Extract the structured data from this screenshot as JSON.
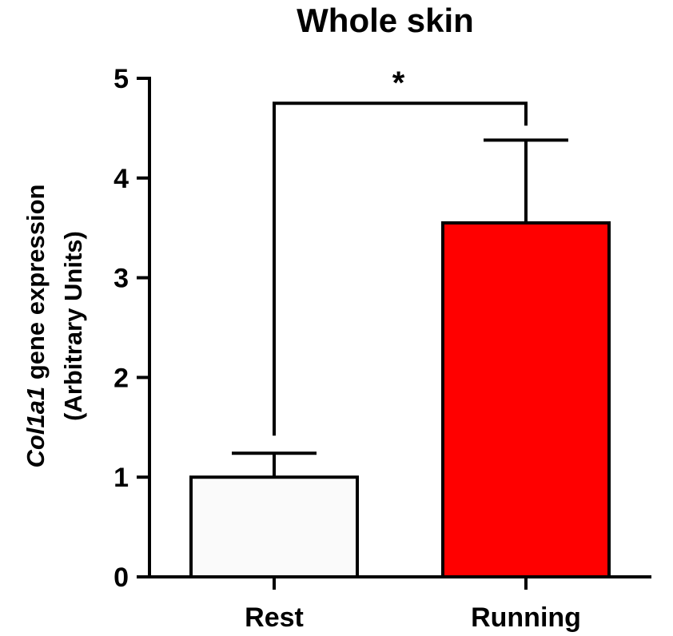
{
  "chart_data": {
    "type": "bar",
    "title": "Whole skin",
    "ylabel_italic": "Col1a1",
    "ylabel_rest": " gene expression",
    "ylabel_line2": "(Arbitrary Units)",
    "categories": [
      "Rest",
      "Running"
    ],
    "values": [
      1.0,
      3.55
    ],
    "error_upper": [
      0.24,
      0.83
    ],
    "colors": [
      "#fafafa",
      "#ff0000"
    ],
    "ylim": [
      0,
      5
    ],
    "yticks": [
      0,
      1,
      2,
      3,
      4,
      5
    ],
    "significance": {
      "label": "*",
      "between": [
        "Rest",
        "Running"
      ],
      "bracket_y": 4.75
    }
  }
}
